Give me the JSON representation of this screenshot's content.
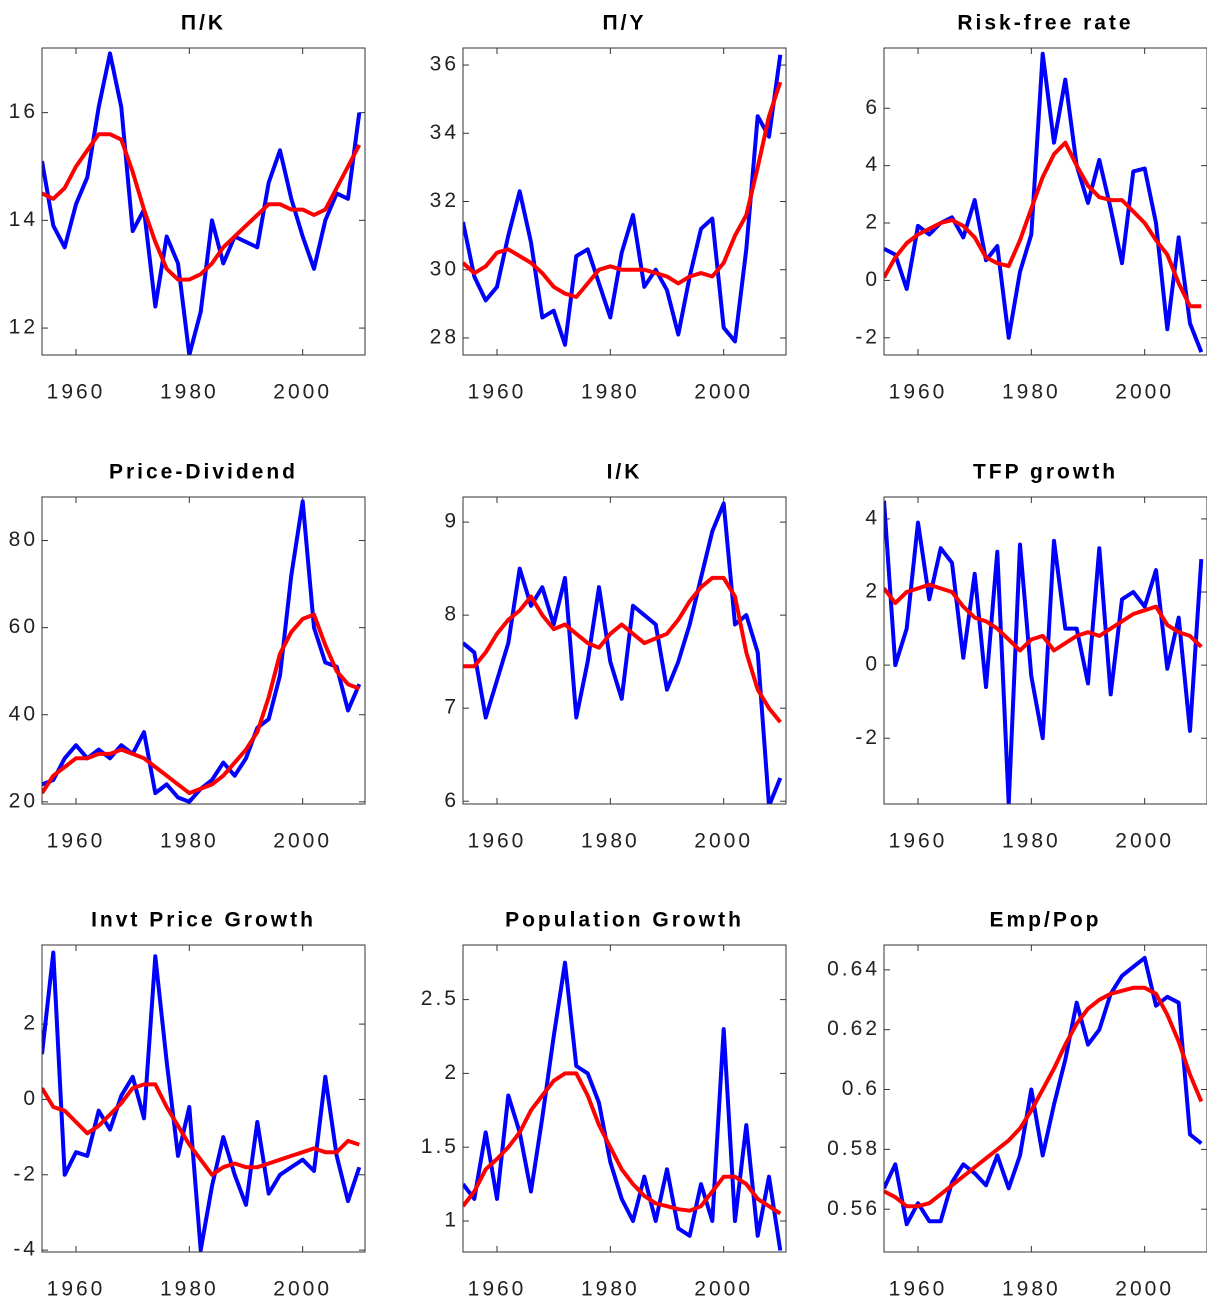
{
  "chart_data": [
    {
      "type": "line",
      "title": "Π/K",
      "x": [
        1954,
        1956,
        1958,
        1960,
        1962,
        1964,
        1966,
        1968,
        1970,
        1972,
        1974,
        1976,
        1978,
        1980,
        1982,
        1984,
        1986,
        1988,
        1990,
        1992,
        1994,
        1996,
        1998,
        2000,
        2002,
        2004,
        2006,
        2008,
        2010
      ],
      "xlim": [
        1954,
        2011
      ],
      "xticks": [
        1960,
        1980,
        2000
      ],
      "ylim": [
        11.5,
        17.2
      ],
      "yticks": [
        12,
        14,
        16
      ],
      "series": [
        {
          "color": "#0000ff",
          "values": [
            15.1,
            13.9,
            13.5,
            14.3,
            14.8,
            16.1,
            17.1,
            16.1,
            13.8,
            14.2,
            12.4,
            13.7,
            13.2,
            11.5,
            12.3,
            14.0,
            13.2,
            13.7,
            13.6,
            13.5,
            14.7,
            15.3,
            14.4,
            13.7,
            13.1,
            14.0,
            14.5,
            14.4,
            16.0
          ]
        },
        {
          "color": "#ff0000",
          "values": [
            14.5,
            14.4,
            14.6,
            15.0,
            15.3,
            15.6,
            15.6,
            15.5,
            14.9,
            14.2,
            13.6,
            13.1,
            12.9,
            12.9,
            13.0,
            13.2,
            13.5,
            13.7,
            13.9,
            14.1,
            14.3,
            14.3,
            14.2,
            14.2,
            14.1,
            14.2,
            14.6,
            15.0,
            15.4
          ]
        }
      ]
    },
    {
      "type": "line",
      "title": "Π/Y",
      "x": [
        1954,
        1956,
        1958,
        1960,
        1962,
        1964,
        1966,
        1968,
        1970,
        1972,
        1974,
        1976,
        1978,
        1980,
        1982,
        1984,
        1986,
        1988,
        1990,
        1992,
        1994,
        1996,
        1998,
        2000,
        2002,
        2004,
        2006,
        2008,
        2010
      ],
      "xlim": [
        1954,
        2011
      ],
      "xticks": [
        1960,
        1980,
        2000
      ],
      "ylim": [
        27.5,
        36.5
      ],
      "yticks": [
        28,
        30,
        32,
        34,
        36
      ],
      "series": [
        {
          "color": "#0000ff",
          "values": [
            31.4,
            29.8,
            29.1,
            29.5,
            31.0,
            32.3,
            30.8,
            28.6,
            28.8,
            27.8,
            30.4,
            30.6,
            29.6,
            28.6,
            30.5,
            31.6,
            29.5,
            30.0,
            29.4,
            28.1,
            29.8,
            31.2,
            31.5,
            28.3,
            27.9,
            30.6,
            34.5,
            33.9,
            36.3
          ]
        },
        {
          "color": "#ff0000",
          "values": [
            30.2,
            29.9,
            30.1,
            30.5,
            30.6,
            30.4,
            30.2,
            29.9,
            29.5,
            29.3,
            29.2,
            29.6,
            30.0,
            30.1,
            30.0,
            30.0,
            30.0,
            29.9,
            29.8,
            29.6,
            29.8,
            29.9,
            29.8,
            30.2,
            31.0,
            31.6,
            33.0,
            34.5,
            35.5
          ]
        }
      ]
    },
    {
      "type": "line",
      "title": "Risk-free rate",
      "x": [
        1954,
        1956,
        1958,
        1960,
        1962,
        1964,
        1966,
        1968,
        1970,
        1972,
        1974,
        1976,
        1978,
        1980,
        1982,
        1984,
        1986,
        1988,
        1990,
        1992,
        1994,
        1996,
        1998,
        2000,
        2002,
        2004,
        2006,
        2008,
        2010
      ],
      "xlim": [
        1954,
        2011
      ],
      "xticks": [
        1960,
        1980,
        2000
      ],
      "ylim": [
        -2.6,
        8.1
      ],
      "yticks": [
        -2,
        0,
        2,
        4,
        6
      ],
      "series": [
        {
          "color": "#0000ff",
          "values": [
            1.1,
            0.9,
            -0.3,
            1.9,
            1.6,
            2.0,
            2.2,
            1.5,
            2.8,
            0.7,
            1.2,
            -2.0,
            0.3,
            1.6,
            7.9,
            4.8,
            7.0,
            4.0,
            2.7,
            4.2,
            2.5,
            0.6,
            3.8,
            3.9,
            2.0,
            -1.7,
            1.5,
            -1.5,
            -2.5
          ]
        },
        {
          "color": "#ff0000",
          "values": [
            0.1,
            0.8,
            1.3,
            1.6,
            1.8,
            2.0,
            2.1,
            1.9,
            1.5,
            0.8,
            0.6,
            0.5,
            1.4,
            2.5,
            3.6,
            4.4,
            4.8,
            4.0,
            3.3,
            2.9,
            2.8,
            2.8,
            2.4,
            2.0,
            1.4,
            0.9,
            -0.1,
            -0.9,
            -0.9
          ]
        }
      ]
    },
    {
      "type": "line",
      "title": "Price-Dividend",
      "x": [
        1954,
        1956,
        1958,
        1960,
        1962,
        1964,
        1966,
        1968,
        1970,
        1972,
        1974,
        1976,
        1978,
        1980,
        1982,
        1984,
        1986,
        1988,
        1990,
        1992,
        1994,
        1996,
        1998,
        2000,
        2002,
        2004,
        2006,
        2008,
        2010
      ],
      "xlim": [
        1954,
        2011
      ],
      "xticks": [
        1960,
        1980,
        2000
      ],
      "ylim": [
        19.5,
        90
      ],
      "yticks": [
        20,
        40,
        60,
        80
      ],
      "series": [
        {
          "color": "#0000ff",
          "values": [
            24,
            25,
            30,
            33,
            30,
            32,
            30,
            33,
            31,
            36,
            22,
            24,
            21,
            20,
            23,
            25,
            29,
            26,
            30,
            37,
            39,
            49,
            72,
            89,
            60,
            52,
            51,
            41,
            47
          ]
        },
        {
          "color": "#ff0000",
          "values": [
            22,
            26,
            28,
            30,
            30,
            31,
            31,
            32,
            31,
            30,
            28,
            26,
            24,
            22,
            23,
            24,
            26,
            29,
            32,
            36,
            44,
            54,
            59,
            62,
            63,
            56,
            50,
            47,
            46
          ]
        }
      ]
    },
    {
      "type": "line",
      "title": "I/K",
      "x": [
        1954,
        1956,
        1958,
        1960,
        1962,
        1964,
        1966,
        1968,
        1970,
        1972,
        1974,
        1976,
        1978,
        1980,
        1982,
        1984,
        1986,
        1988,
        1990,
        1992,
        1994,
        1996,
        1998,
        2000,
        2002,
        2004,
        2006,
        2008,
        2010
      ],
      "xlim": [
        1954,
        2011
      ],
      "xticks": [
        1960,
        1980,
        2000
      ],
      "ylim": [
        5.97,
        9.27
      ],
      "yticks": [
        6,
        7,
        8,
        9
      ],
      "series": [
        {
          "color": "#0000ff",
          "values": [
            7.7,
            7.6,
            6.9,
            7.3,
            7.7,
            8.5,
            8.1,
            8.3,
            7.9,
            8.4,
            6.9,
            7.5,
            8.3,
            7.5,
            7.1,
            8.1,
            8.0,
            7.9,
            7.2,
            7.5,
            7.9,
            8.4,
            8.9,
            9.2,
            7.9,
            8.0,
            7.6,
            5.95,
            6.25
          ]
        },
        {
          "color": "#ff0000",
          "values": [
            7.45,
            7.45,
            7.6,
            7.8,
            7.95,
            8.05,
            8.2,
            8.0,
            7.85,
            7.9,
            7.8,
            7.7,
            7.65,
            7.8,
            7.9,
            7.8,
            7.7,
            7.75,
            7.8,
            7.95,
            8.15,
            8.3,
            8.4,
            8.4,
            8.2,
            7.6,
            7.2,
            7.0,
            6.85
          ]
        }
      ]
    },
    {
      "type": "line",
      "title": "TFP growth",
      "x": [
        1954,
        1956,
        1958,
        1960,
        1962,
        1964,
        1966,
        1968,
        1970,
        1972,
        1974,
        1976,
        1978,
        1980,
        1982,
        1984,
        1986,
        1988,
        1990,
        1992,
        1994,
        1996,
        1998,
        2000,
        2002,
        2004,
        2006,
        2008,
        2010
      ],
      "xlim": [
        1954,
        2011
      ],
      "xticks": [
        1960,
        1980,
        2000
      ],
      "ylim": [
        -3.8,
        4.6
      ],
      "yticks": [
        -2,
        0,
        2,
        4
      ],
      "series": [
        {
          "color": "#0000ff",
          "values": [
            4.5,
            0.0,
            1.0,
            3.9,
            1.8,
            3.2,
            2.8,
            0.2,
            2.5,
            -0.6,
            3.1,
            -3.8,
            3.3,
            -0.3,
            -2.0,
            3.4,
            1.0,
            1.0,
            -0.5,
            3.2,
            -0.8,
            1.8,
            2.0,
            1.6,
            2.6,
            -0.1,
            1.3,
            -1.8,
            2.9
          ]
        },
        {
          "color": "#ff0000",
          "values": [
            2.1,
            1.7,
            2.0,
            2.1,
            2.2,
            2.1,
            2.0,
            1.6,
            1.3,
            1.2,
            1.0,
            0.7,
            0.4,
            0.7,
            0.8,
            0.4,
            0.6,
            0.8,
            0.9,
            0.8,
            1.0,
            1.2,
            1.4,
            1.5,
            1.6,
            1.1,
            0.9,
            0.8,
            0.5
          ]
        }
      ]
    },
    {
      "type": "line",
      "title": "Invt Price Growth",
      "x": [
        1954,
        1956,
        1958,
        1960,
        1962,
        1964,
        1966,
        1968,
        1970,
        1972,
        1974,
        1976,
        1978,
        1980,
        1982,
        1984,
        1986,
        1988,
        1990,
        1992,
        1994,
        1996,
        1998,
        2000,
        2002,
        2004,
        2006,
        2008,
        2010
      ],
      "xlim": [
        1954,
        2011
      ],
      "xticks": [
        1960,
        1980,
        2000
      ],
      "ylim": [
        -4.05,
        4.1
      ],
      "yticks": [
        -4,
        -2,
        0,
        2
      ],
      "series": [
        {
          "color": "#0000ff",
          "values": [
            1.2,
            3.9,
            -2.0,
            -1.4,
            -1.5,
            -0.3,
            -0.8,
            0.1,
            0.6,
            -0.5,
            3.8,
            1.0,
            -1.5,
            -0.2,
            -4.0,
            -2.3,
            -1.0,
            -2.0,
            -2.8,
            -0.6,
            -2.5,
            -2.0,
            -1.8,
            -1.6,
            -1.9,
            0.6,
            -1.5,
            -2.7,
            -1.8
          ]
        },
        {
          "color": "#ff0000",
          "values": [
            0.3,
            -0.2,
            -0.3,
            -0.6,
            -0.9,
            -0.7,
            -0.4,
            -0.1,
            0.3,
            0.4,
            0.4,
            -0.2,
            -0.7,
            -1.2,
            -1.6,
            -2.0,
            -1.8,
            -1.7,
            -1.8,
            -1.8,
            -1.7,
            -1.6,
            -1.5,
            -1.4,
            -1.3,
            -1.4,
            -1.4,
            -1.1,
            -1.2
          ]
        }
      ]
    },
    {
      "type": "line",
      "title": "Population Growth",
      "x": [
        1954,
        1956,
        1958,
        1960,
        1962,
        1964,
        1966,
        1968,
        1970,
        1972,
        1974,
        1976,
        1978,
        1980,
        1982,
        1984,
        1986,
        1988,
        1990,
        1992,
        1994,
        1996,
        1998,
        2000,
        2002,
        2004,
        2006,
        2008,
        2010
      ],
      "xlim": [
        1954,
        2011
      ],
      "xticks": [
        1960,
        1980,
        2000
      ],
      "ylim": [
        0.79,
        2.87
      ],
      "yticks": [
        1,
        1.5,
        2,
        2.5
      ],
      "series": [
        {
          "color": "#0000ff",
          "values": [
            1.25,
            1.15,
            1.6,
            1.15,
            1.85,
            1.6,
            1.2,
            1.7,
            2.25,
            2.75,
            2.05,
            2.0,
            1.8,
            1.4,
            1.15,
            1.0,
            1.3,
            1.0,
            1.35,
            0.95,
            0.9,
            1.25,
            1.0,
            2.3,
            1.0,
            1.65,
            0.9,
            1.3,
            0.8
          ]
        },
        {
          "color": "#ff0000",
          "values": [
            1.1,
            1.2,
            1.35,
            1.42,
            1.5,
            1.6,
            1.75,
            1.85,
            1.95,
            2.0,
            2.0,
            1.85,
            1.65,
            1.5,
            1.35,
            1.25,
            1.17,
            1.12,
            1.1,
            1.08,
            1.07,
            1.1,
            1.2,
            1.3,
            1.3,
            1.25,
            1.15,
            1.1,
            1.05
          ]
        }
      ]
    },
    {
      "type": "line",
      "title": "Emp/Pop",
      "x": [
        1954,
        1956,
        1958,
        1960,
        1962,
        1964,
        1966,
        1968,
        1970,
        1972,
        1974,
        1976,
        1978,
        1980,
        1982,
        1984,
        1986,
        1988,
        1990,
        1992,
        1994,
        1996,
        1998,
        2000,
        2002,
        2004,
        2006,
        2008,
        2010
      ],
      "xlim": [
        1954,
        2011
      ],
      "xticks": [
        1960,
        1980,
        2000
      ],
      "ylim": [
        0.5457,
        0.6483
      ],
      "yticks": [
        0.56,
        0.58,
        0.6,
        0.62,
        0.64
      ],
      "series": [
        {
          "color": "#0000ff",
          "values": [
            0.567,
            0.575,
            0.555,
            0.562,
            0.556,
            0.556,
            0.569,
            0.575,
            0.572,
            0.568,
            0.578,
            0.567,
            0.578,
            0.6,
            0.578,
            0.595,
            0.61,
            0.629,
            0.615,
            0.62,
            0.632,
            0.638,
            0.641,
            0.644,
            0.628,
            0.631,
            0.629,
            0.585,
            0.582
          ]
        },
        {
          "color": "#ff0000",
          "values": [
            0.566,
            0.564,
            0.561,
            0.561,
            0.562,
            0.565,
            0.568,
            0.571,
            0.574,
            0.577,
            0.58,
            0.583,
            0.587,
            0.593,
            0.6,
            0.607,
            0.615,
            0.622,
            0.627,
            0.63,
            0.632,
            0.633,
            0.634,
            0.634,
            0.632,
            0.625,
            0.616,
            0.605,
            0.596
          ]
        }
      ]
    }
  ]
}
